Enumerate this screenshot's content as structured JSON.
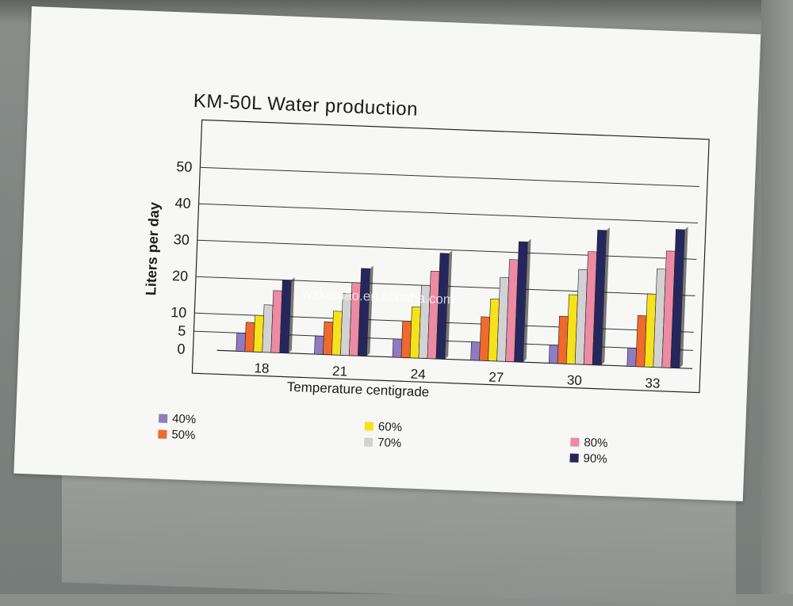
{
  "watermark": "wzkemao.en.alibaba.com",
  "chart_data": {
    "type": "bar",
    "title": "KM-50L Water production",
    "xlabel": "Temperature centigrade",
    "ylabel": "Liters per day",
    "ylim": [
      0,
      50
    ],
    "yticks": [
      "0",
      "5",
      "10",
      "20",
      "30",
      "40",
      "50"
    ],
    "grid": true,
    "legend_position": "bottom",
    "categories": [
      "18",
      "21",
      "24",
      "27",
      "30",
      "33"
    ],
    "series": [
      {
        "name": "40%",
        "color": "#8e7bc0",
        "values": [
          5,
          5,
          5,
          5,
          5,
          5
        ]
      },
      {
        "name": "50%",
        "color": "#ef6a2c",
        "values": [
          8,
          9,
          10,
          12,
          13,
          14
        ]
      },
      {
        "name": "60%",
        "color": "#f6e21a",
        "values": [
          10,
          12,
          14,
          17,
          19,
          20
        ]
      },
      {
        "name": "70%",
        "color": "#d2d2d2",
        "values": [
          13,
          17,
          20,
          23,
          26,
          27
        ]
      },
      {
        "name": "80%",
        "color": "#ec8ba3",
        "values": [
          17,
          20,
          24,
          28,
          31,
          32
        ]
      },
      {
        "name": "90%",
        "color": "#25275c",
        "values": [
          20,
          24,
          29,
          33,
          37,
          38
        ]
      }
    ]
  }
}
